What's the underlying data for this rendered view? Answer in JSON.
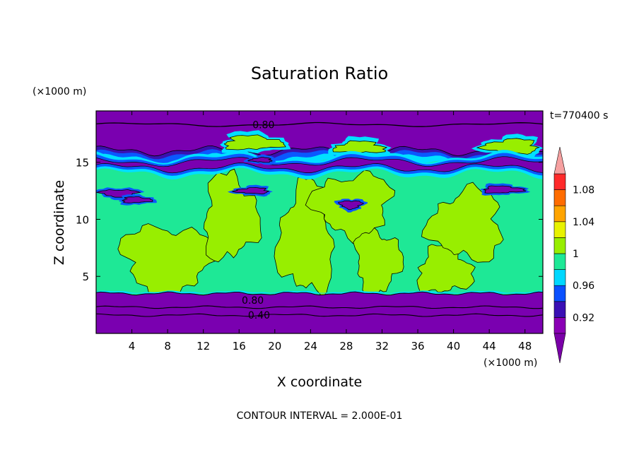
{
  "chart_data": {
    "type": "heatmap",
    "title": "Saturation Ratio",
    "xlabel": "X coordinate",
    "ylabel": "Z coordinate",
    "x_unit": "(×1000 m)",
    "y_unit": "(×1000 m)",
    "time_label": "t=770400 s",
    "footer": "CONTOUR INTERVAL = 2.000E-01",
    "xlim": [
      0,
      50
    ],
    "ylim": [
      0,
      19.5
    ],
    "x_ticks": [
      4,
      8,
      12,
      16,
      20,
      24,
      28,
      32,
      36,
      40,
      44,
      48
    ],
    "y_ticks": [
      5,
      10,
      15
    ],
    "contour_labels": [
      {
        "text": "0.80",
        "x": 17.5,
        "z": 18.3
      },
      {
        "text": "0.80",
        "x": 16.3,
        "z": 2.9
      },
      {
        "text": "0.40",
        "x": 17.0,
        "z": 1.6
      }
    ],
    "colorbar": {
      "levels": [
        0.9,
        0.92,
        0.94,
        0.96,
        0.98,
        1.0,
        1.02,
        1.04,
        1.06,
        1.08,
        1.1
      ],
      "colors": [
        "#8a00b5",
        "#3a0fb4",
        "#0a50ff",
        "#00d8ff",
        "#1ee896",
        "#98ee00",
        "#e8f200",
        "#ffa400",
        "#ff6c00",
        "#ff2a2a"
      ],
      "under_color": "#7a00a8",
      "over_color": "#f6a0a0",
      "tick_labels": [
        {
          "value": 0.92,
          "text": "0.92"
        },
        {
          "value": 0.96,
          "text": "0.96"
        },
        {
          "value": 1.0,
          "text": "1"
        },
        {
          "value": 1.04,
          "text": "1.04"
        },
        {
          "value": 1.08,
          "text": "1.08"
        }
      ]
    },
    "field_colors": {
      "dry": "#7a00b0",
      "band_dark": "#3a10b0",
      "band_blue": "#0a58ff",
      "band_cyan": "#00e0ff",
      "moist": "#1ee896",
      "saturated": "#98ee00",
      "contour": "#000000"
    },
    "regions": {
      "upper_dry_layer": {
        "z_bottom": 16.0,
        "z_top": 19.5
      },
      "lower_dry_layer": {
        "z_bottom": 0.0,
        "z_top": 3.5
      },
      "mid_dry_band": {
        "z_bottom": 14.0,
        "z_top": 15.5
      },
      "inner_contours_z": [
        2.3,
        1.6
      ]
    },
    "saturated_patches": [
      {
        "x0": 3.0,
        "x1": 13.0,
        "z0": 3.5,
        "z1": 9.5
      },
      {
        "x0": 12.0,
        "x1": 18.0,
        "z0": 6.5,
        "z1": 13.8
      },
      {
        "x0": 20.5,
        "x1": 26.5,
        "z0": 3.5,
        "z1": 13.0
      },
      {
        "x0": 24.5,
        "x1": 33.0,
        "z0": 8.5,
        "z1": 14.0
      },
      {
        "x0": 29.0,
        "x1": 34.0,
        "z0": 3.5,
        "z1": 9.0
      },
      {
        "x0": 36.0,
        "x1": 42.0,
        "z0": 3.5,
        "z1": 7.5
      },
      {
        "x0": 37.5,
        "x1": 45.5,
        "z0": 6.5,
        "z1": 12.5
      },
      {
        "x0": 14.0,
        "x1": 19.0,
        "z0": 16.2,
        "z1": 17.2
      },
      {
        "x0": 27.0,
        "x1": 32.5,
        "z0": 15.8,
        "z1": 16.8
      },
      {
        "x0": 44.0,
        "x1": 49.5,
        "z0": 15.8,
        "z1": 17.0
      }
    ]
  }
}
